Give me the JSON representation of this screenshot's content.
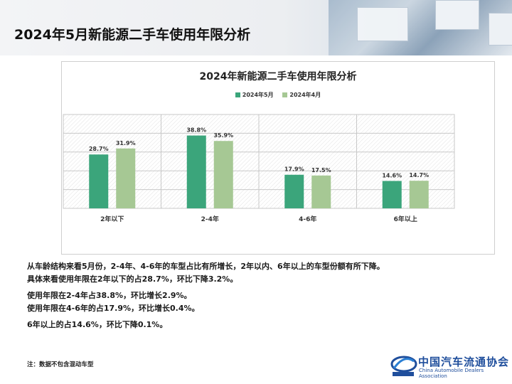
{
  "page": {
    "title": "2024年5月新能源二手车使用年限分析"
  },
  "chart_data": {
    "type": "bar",
    "title": "2024年新能源二手车使用年限分析",
    "categories": [
      "2年以下",
      "2-4年",
      "4-6年",
      "6年以上"
    ],
    "series": [
      {
        "name": "2024年5月",
        "color": "#3ba57b",
        "values": [
          28.7,
          38.8,
          17.9,
          14.6
        ],
        "labels": [
          "28.7%",
          "38.8%",
          "17.9%",
          "14.6%"
        ]
      },
      {
        "name": "2024年4月",
        "color": "#a6c894",
        "values": [
          31.9,
          35.9,
          17.5,
          14.7
        ],
        "labels": [
          "31.9%",
          "35.9%",
          "17.5%",
          "14.7%"
        ]
      }
    ],
    "ylim": [
      0,
      50
    ],
    "grid": true,
    "legend_position": "top-center"
  },
  "notes": [
    "从车龄结构来看5月份，2-4年、4-6年的车型占比有所增长，2年以内、6年以上的车型份额有所下降。",
    "具体来看使用年限在2年以下的占28.7%，环比下降3.2%。",
    "使用年限在2-4年占38.8%，环比增长2.9%。",
    "使用年限在4-6年的占17.9%，环比增长0.4%。",
    "6年以上的占14.6%，环比下降0.1%。"
  ],
  "footnote": "注：数据不包含混动车型",
  "logo": {
    "name_cn": "中国汽车流通协会",
    "name_en": "China Automobile Dealers Association",
    "icon": "cada-logo-icon"
  }
}
